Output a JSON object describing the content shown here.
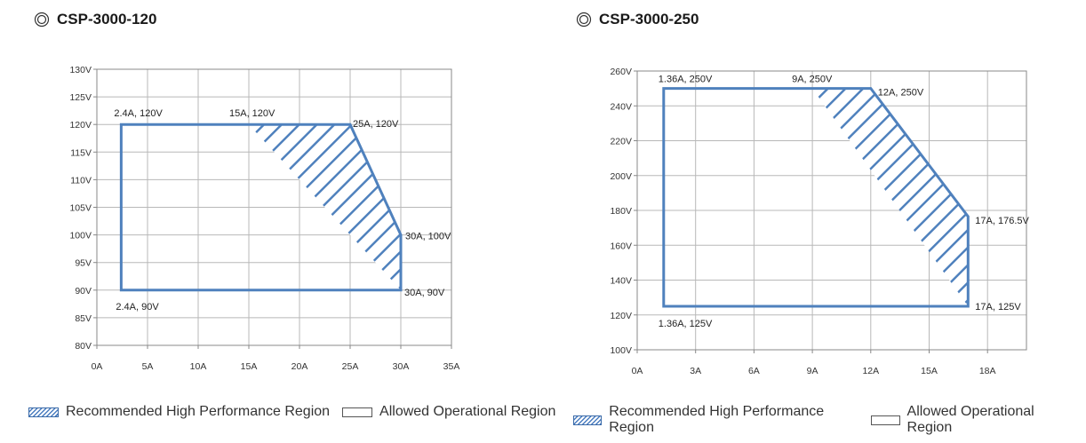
{
  "charts_header": [
    {
      "title": "CSP-3000-120",
      "icon": "double-circle-icon"
    },
    {
      "title": "CSP-3000-250",
      "icon": "double-circle-icon"
    }
  ],
  "legend": {
    "hatched_label": "Recommended High Performance Region",
    "plain_label": "Allowed Operational Region"
  },
  "colors": {
    "line": "#4f81bd",
    "grid": "#b8b8b8",
    "axis": "#888888"
  },
  "chart_data": [
    {
      "type": "area",
      "title": "CSP-3000-120",
      "xlabel": "",
      "ylabel": "",
      "xlim": [
        0,
        35
      ],
      "ylim": [
        80,
        130
      ],
      "xticks": [
        0,
        5,
        10,
        15,
        20,
        25,
        30,
        35
      ],
      "xtick_labels": [
        "0A",
        "5A",
        "10A",
        "15A",
        "20A",
        "25A",
        "30A",
        "35A"
      ],
      "yticks": [
        80,
        85,
        90,
        95,
        100,
        105,
        110,
        115,
        120,
        125,
        130
      ],
      "ytick_labels": [
        "80V",
        "85V",
        "90V",
        "95V",
        "100V",
        "105V",
        "110V",
        "115V",
        "120V",
        "125V",
        "130V"
      ],
      "grid": true,
      "allowed_region": [
        [
          2.4,
          90
        ],
        [
          2.4,
          120
        ],
        [
          25,
          120
        ],
        [
          30,
          100
        ],
        [
          30,
          90
        ]
      ],
      "recommended_region": [
        [
          15,
          120
        ],
        [
          25,
          120
        ],
        [
          30,
          100
        ],
        [
          30,
          90
        ]
      ],
      "annotations": [
        {
          "text": "2.4A, 120V",
          "x": 2.4,
          "y": 120
        },
        {
          "text": "15A, 120V",
          "x": 15,
          "y": 120
        },
        {
          "text": "25A, 120V",
          "x": 25,
          "y": 120
        },
        {
          "text": "30A, 100V",
          "x": 30,
          "y": 100
        },
        {
          "text": "30A, 90V",
          "x": 30,
          "y": 90
        },
        {
          "text": "2.4A, 90V",
          "x": 2.4,
          "y": 90
        }
      ]
    },
    {
      "type": "area",
      "title": "CSP-3000-250",
      "xlabel": "",
      "ylabel": "",
      "xlim": [
        0,
        20
      ],
      "ylim": [
        100,
        260
      ],
      "xticks": [
        0,
        3,
        6,
        9,
        12,
        15,
        18
      ],
      "xtick_labels": [
        "0A",
        "3A",
        "6A",
        "9A",
        "12A",
        "15A",
        "18A"
      ],
      "yticks": [
        100,
        120,
        140,
        160,
        180,
        200,
        220,
        240,
        260
      ],
      "ytick_labels": [
        "100V",
        "120V",
        "140V",
        "160V",
        "180V",
        "200V",
        "220V",
        "240V",
        "260V"
      ],
      "grid": true,
      "allowed_region": [
        [
          1.36,
          125
        ],
        [
          1.36,
          250
        ],
        [
          12,
          250
        ],
        [
          17,
          176.5
        ],
        [
          17,
          125
        ]
      ],
      "recommended_region": [
        [
          9,
          250
        ],
        [
          12,
          250
        ],
        [
          17,
          176.5
        ],
        [
          17,
          125
        ]
      ],
      "annotations": [
        {
          "text": "1.36A, 250V",
          "x": 1.36,
          "y": 250
        },
        {
          "text": "9A, 250V",
          "x": 9,
          "y": 250
        },
        {
          "text": "12A, 250V",
          "x": 12,
          "y": 250
        },
        {
          "text": "17A, 176.5V",
          "x": 17,
          "y": 176.5
        },
        {
          "text": "17A, 125V",
          "x": 17,
          "y": 125
        },
        {
          "text": "1.36A, 125V",
          "x": 1.36,
          "y": 125
        }
      ]
    }
  ]
}
